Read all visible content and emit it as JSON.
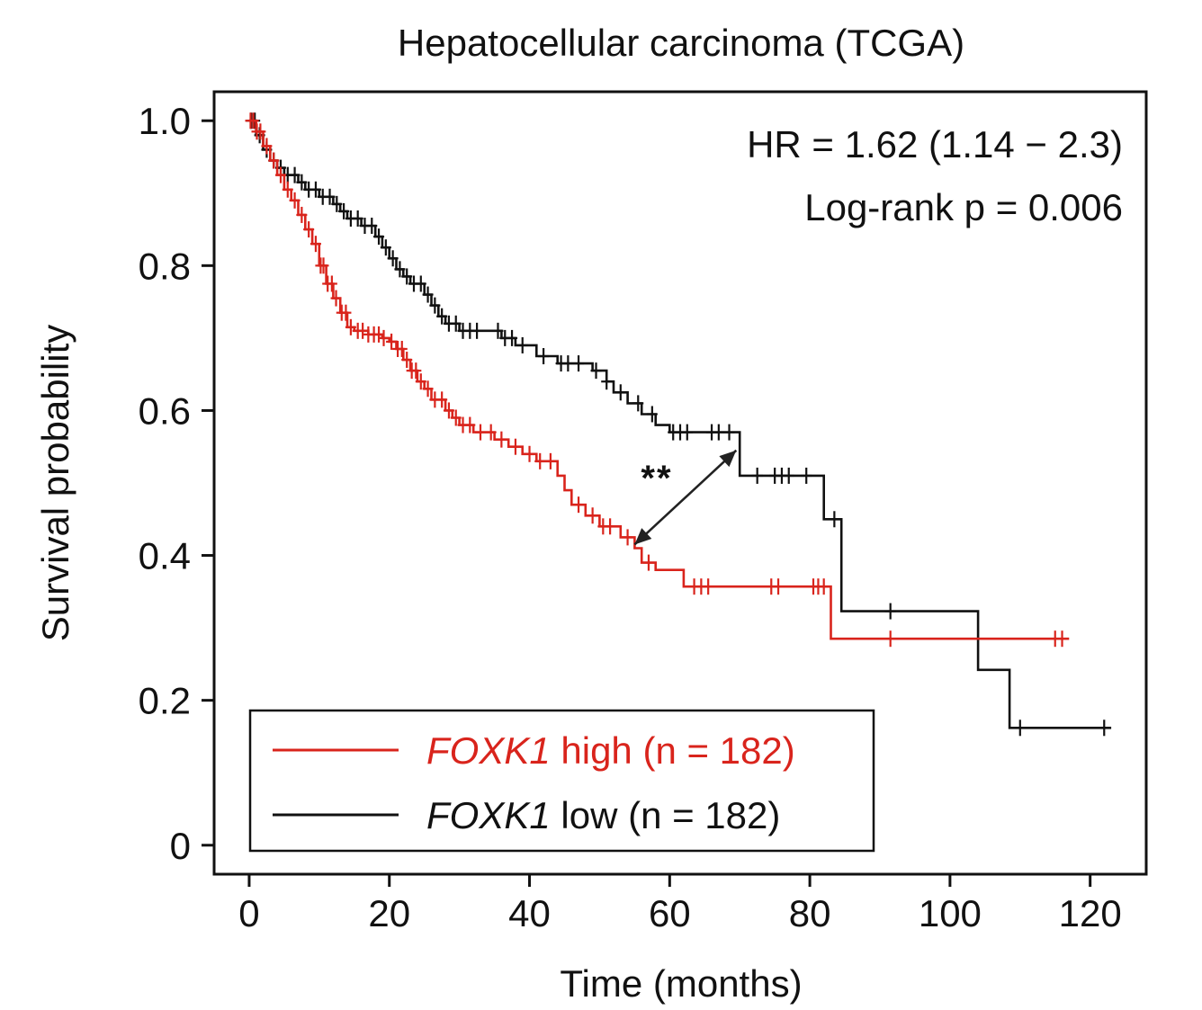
{
  "chart_data": {
    "type": "line",
    "subtype": "kaplan-meier",
    "title": "Hepatocellular carcinoma (TCGA)",
    "xlabel": "Time (months)",
    "ylabel": "Survival probability",
    "xlim": [
      -5,
      128
    ],
    "ylim": [
      -0.04,
      1.04
    ],
    "xticks": [
      0,
      20,
      40,
      60,
      80,
      100,
      120
    ],
    "xtick_labels": [
      "0",
      "20",
      "40",
      "60",
      "80",
      "100",
      "120"
    ],
    "yticks": [
      0,
      0.2,
      0.4,
      0.6,
      0.8,
      1.0
    ],
    "ytick_labels": [
      "0",
      "0.2",
      "0.4",
      "0.6",
      "0.8",
      "1.0"
    ],
    "annotations": {
      "hr": "HR = 1.62 (1.14 − 2.3)",
      "logrank": "Log-rank p = 0.006",
      "significance": "**",
      "arrow": {
        "from": [
          55,
          0.415
        ],
        "to": [
          69.5,
          0.545
        ]
      }
    },
    "legend": {
      "position": "bottom-left",
      "entries": [
        {
          "gene": "FOXK1",
          "rest": " high (n = 182)",
          "color": "#d9241c"
        },
        {
          "gene": "FOXK1",
          "rest": " low (n = 182)",
          "color": "#111111"
        }
      ]
    },
    "series": [
      {
        "name": "FOXK1 high (n = 182)",
        "color": "#d9241c",
        "steps": [
          [
            0,
            1.0
          ],
          [
            1,
            0.985
          ],
          [
            2,
            0.965
          ],
          [
            3,
            0.945
          ],
          [
            4,
            0.925
          ],
          [
            5,
            0.905
          ],
          [
            6,
            0.89
          ],
          [
            7,
            0.87
          ],
          [
            8,
            0.85
          ],
          [
            9,
            0.83
          ],
          [
            10,
            0.8
          ],
          [
            11,
            0.775
          ],
          [
            12,
            0.755
          ],
          [
            13,
            0.735
          ],
          [
            14,
            0.715
          ],
          [
            15,
            0.71
          ],
          [
            17,
            0.705
          ],
          [
            19,
            0.7
          ],
          [
            20,
            0.695
          ],
          [
            21,
            0.685
          ],
          [
            22,
            0.67
          ],
          [
            23,
            0.655
          ],
          [
            24,
            0.64
          ],
          [
            25,
            0.63
          ],
          [
            26,
            0.615
          ],
          [
            28,
            0.6
          ],
          [
            29,
            0.59
          ],
          [
            30,
            0.58
          ],
          [
            32,
            0.57
          ],
          [
            35,
            0.56
          ],
          [
            37,
            0.55
          ],
          [
            39,
            0.54
          ],
          [
            41,
            0.53
          ],
          [
            44,
            0.51
          ],
          [
            45,
            0.49
          ],
          [
            46,
            0.47
          ],
          [
            48,
            0.455
          ],
          [
            50,
            0.44
          ],
          [
            53,
            0.425
          ],
          [
            55,
            0.41
          ],
          [
            56,
            0.39
          ],
          [
            58,
            0.38
          ],
          [
            62,
            0.357
          ],
          [
            83,
            0.285
          ],
          [
            117,
            0.285
          ]
        ],
        "censor": [
          0.2,
          0.6,
          1.1,
          1.6,
          2.5,
          3.5,
          4.5,
          5.5,
          6.5,
          7.5,
          8.5,
          9.5,
          10.2,
          10.6,
          11.2,
          11.8,
          12.4,
          13.2,
          13.8,
          14.5,
          15.5,
          16.2,
          17,
          17.8,
          18.5,
          19.2,
          20.3,
          21.2,
          21.8,
          22.5,
          23.2,
          23.8,
          24.5,
          25.5,
          26.5,
          27.5,
          28.5,
          29.5,
          30.5,
          31.5,
          33,
          34.5,
          36,
          38,
          40,
          41.5,
          43,
          47,
          49,
          50.5,
          51.5,
          54,
          57,
          63.5,
          64.5,
          65.5,
          74.5,
          75.5,
          80.5,
          81.2,
          82,
          91.5,
          115,
          116
        ]
      },
      {
        "name": "FOXK1 low (n = 182)",
        "color": "#111111",
        "steps": [
          [
            0,
            1.0
          ],
          [
            1,
            0.98
          ],
          [
            2,
            0.96
          ],
          [
            3,
            0.945
          ],
          [
            4,
            0.935
          ],
          [
            5,
            0.925
          ],
          [
            7,
            0.915
          ],
          [
            8,
            0.905
          ],
          [
            10,
            0.895
          ],
          [
            12,
            0.885
          ],
          [
            13,
            0.875
          ],
          [
            14,
            0.865
          ],
          [
            16,
            0.855
          ],
          [
            18,
            0.84
          ],
          [
            19,
            0.825
          ],
          [
            20,
            0.81
          ],
          [
            21,
            0.795
          ],
          [
            22,
            0.785
          ],
          [
            23,
            0.775
          ],
          [
            25,
            0.76
          ],
          [
            26,
            0.745
          ],
          [
            27,
            0.73
          ],
          [
            28,
            0.72
          ],
          [
            30,
            0.71
          ],
          [
            36,
            0.7
          ],
          [
            38,
            0.69
          ],
          [
            41,
            0.675
          ],
          [
            44,
            0.665
          ],
          [
            49,
            0.655
          ],
          [
            51,
            0.64
          ],
          [
            52,
            0.625
          ],
          [
            54,
            0.61
          ],
          [
            56,
            0.595
          ],
          [
            58,
            0.58
          ],
          [
            60,
            0.57
          ],
          [
            70,
            0.51
          ],
          [
            82,
            0.45
          ],
          [
            84.5,
            0.323
          ],
          [
            104,
            0.242
          ],
          [
            108.5,
            0.162
          ],
          [
            123,
            0.162
          ]
        ],
        "censor": [
          0.3,
          0.8,
          1.5,
          2.5,
          3.5,
          4.5,
          5.5,
          6.5,
          7.5,
          8.5,
          9.5,
          10.5,
          11.5,
          12.5,
          13.5,
          14.5,
          15.5,
          16.5,
          17.5,
          18.5,
          19.5,
          20.5,
          21.5,
          22.5,
          23.5,
          24.5,
          25.5,
          26.5,
          27.5,
          28.5,
          29.5,
          30.5,
          31.5,
          32.5,
          35.5,
          36.5,
          37.5,
          39,
          42,
          44.5,
          45.5,
          47,
          49.5,
          51,
          53,
          55.5,
          57.5,
          60.5,
          61.5,
          62.5,
          66,
          67,
          68.5,
          72.5,
          75,
          76,
          77,
          79.5,
          83.5,
          91.5,
          110,
          122
        ]
      }
    ]
  }
}
